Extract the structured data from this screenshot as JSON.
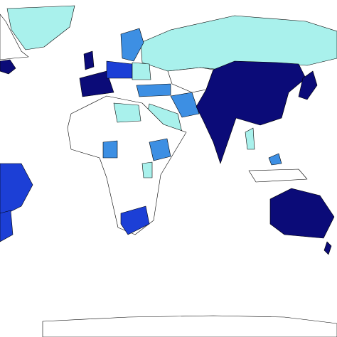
{
  "map": {
    "palette": [
      "#0b0b78",
      "#1c3fd6",
      "#3d8fe3",
      "#a9f1ec",
      "#ffffff"
    ],
    "outline": "#000000",
    "background": "#ffffff"
  }
}
